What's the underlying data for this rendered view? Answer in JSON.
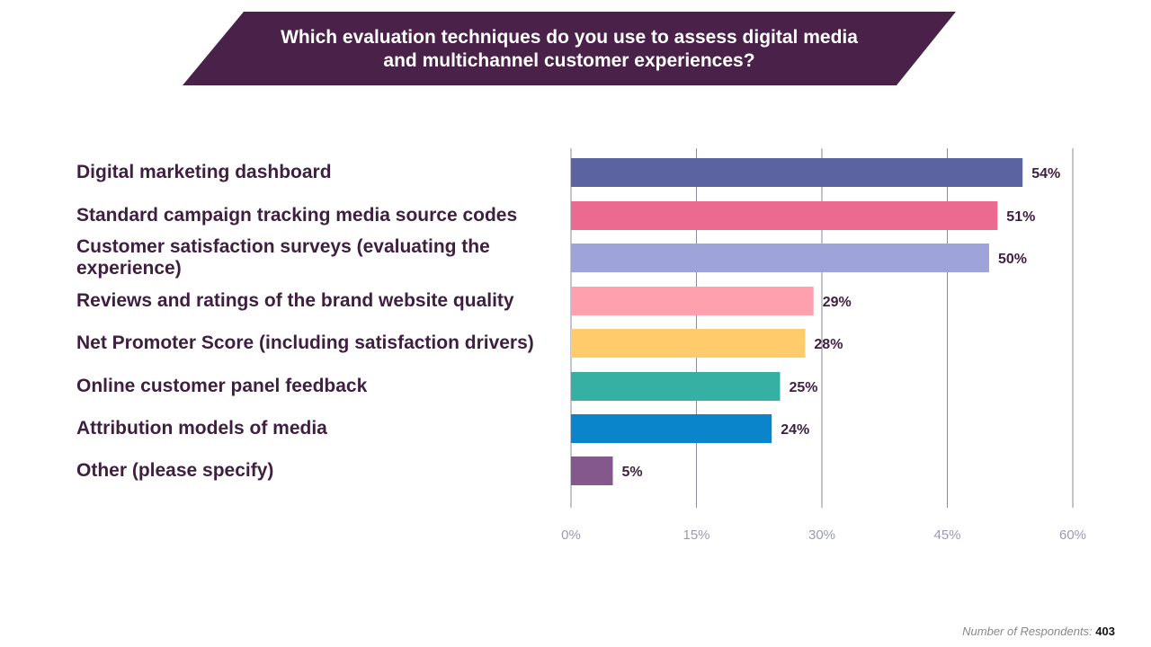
{
  "title": "Which evaluation techniques do you use to assess digital media and multichannel customer experiences?",
  "title_line1": "Which evaluation techniques do you use to assess digital media",
  "title_line2": "and multichannel customer experiences?",
  "footer": {
    "label": "Number of Respondents:",
    "value": "403"
  },
  "colors": {
    "banner": "#4a2249",
    "label_text": "#3f1f40",
    "grid": "#8a8aa0",
    "tick": "#9a9ab8"
  },
  "chart_data": {
    "type": "bar",
    "orientation": "horizontal",
    "categories": [
      "Digital marketing dashboard",
      "Standard campaign tracking media source codes",
      "Customer satisfaction surveys (evaluating the experience)",
      "Reviews and ratings of the brand website quality",
      "Net Promoter Score (including satisfaction drivers)",
      "Online customer panel feedback",
      "Attribution models of media",
      "Other (please specify)"
    ],
    "values": [
      54,
      51,
      50,
      29,
      28,
      25,
      24,
      5
    ],
    "data_labels": [
      "54%",
      "51%",
      "50%",
      "29%",
      "28%",
      "25%",
      "24%",
      "5%"
    ],
    "colors": [
      "#5b63a0",
      "#ec6a8f",
      "#9ea3da",
      "#ffa0ae",
      "#ffcb6b",
      "#37b0a4",
      "#0a85cc",
      "#84578d"
    ],
    "xlim": [
      0,
      60
    ],
    "ticks": [
      0,
      15,
      30,
      45,
      60
    ],
    "tick_labels": [
      "0%",
      "15%",
      "30%",
      "45%",
      "60%"
    ],
    "grid": true
  }
}
